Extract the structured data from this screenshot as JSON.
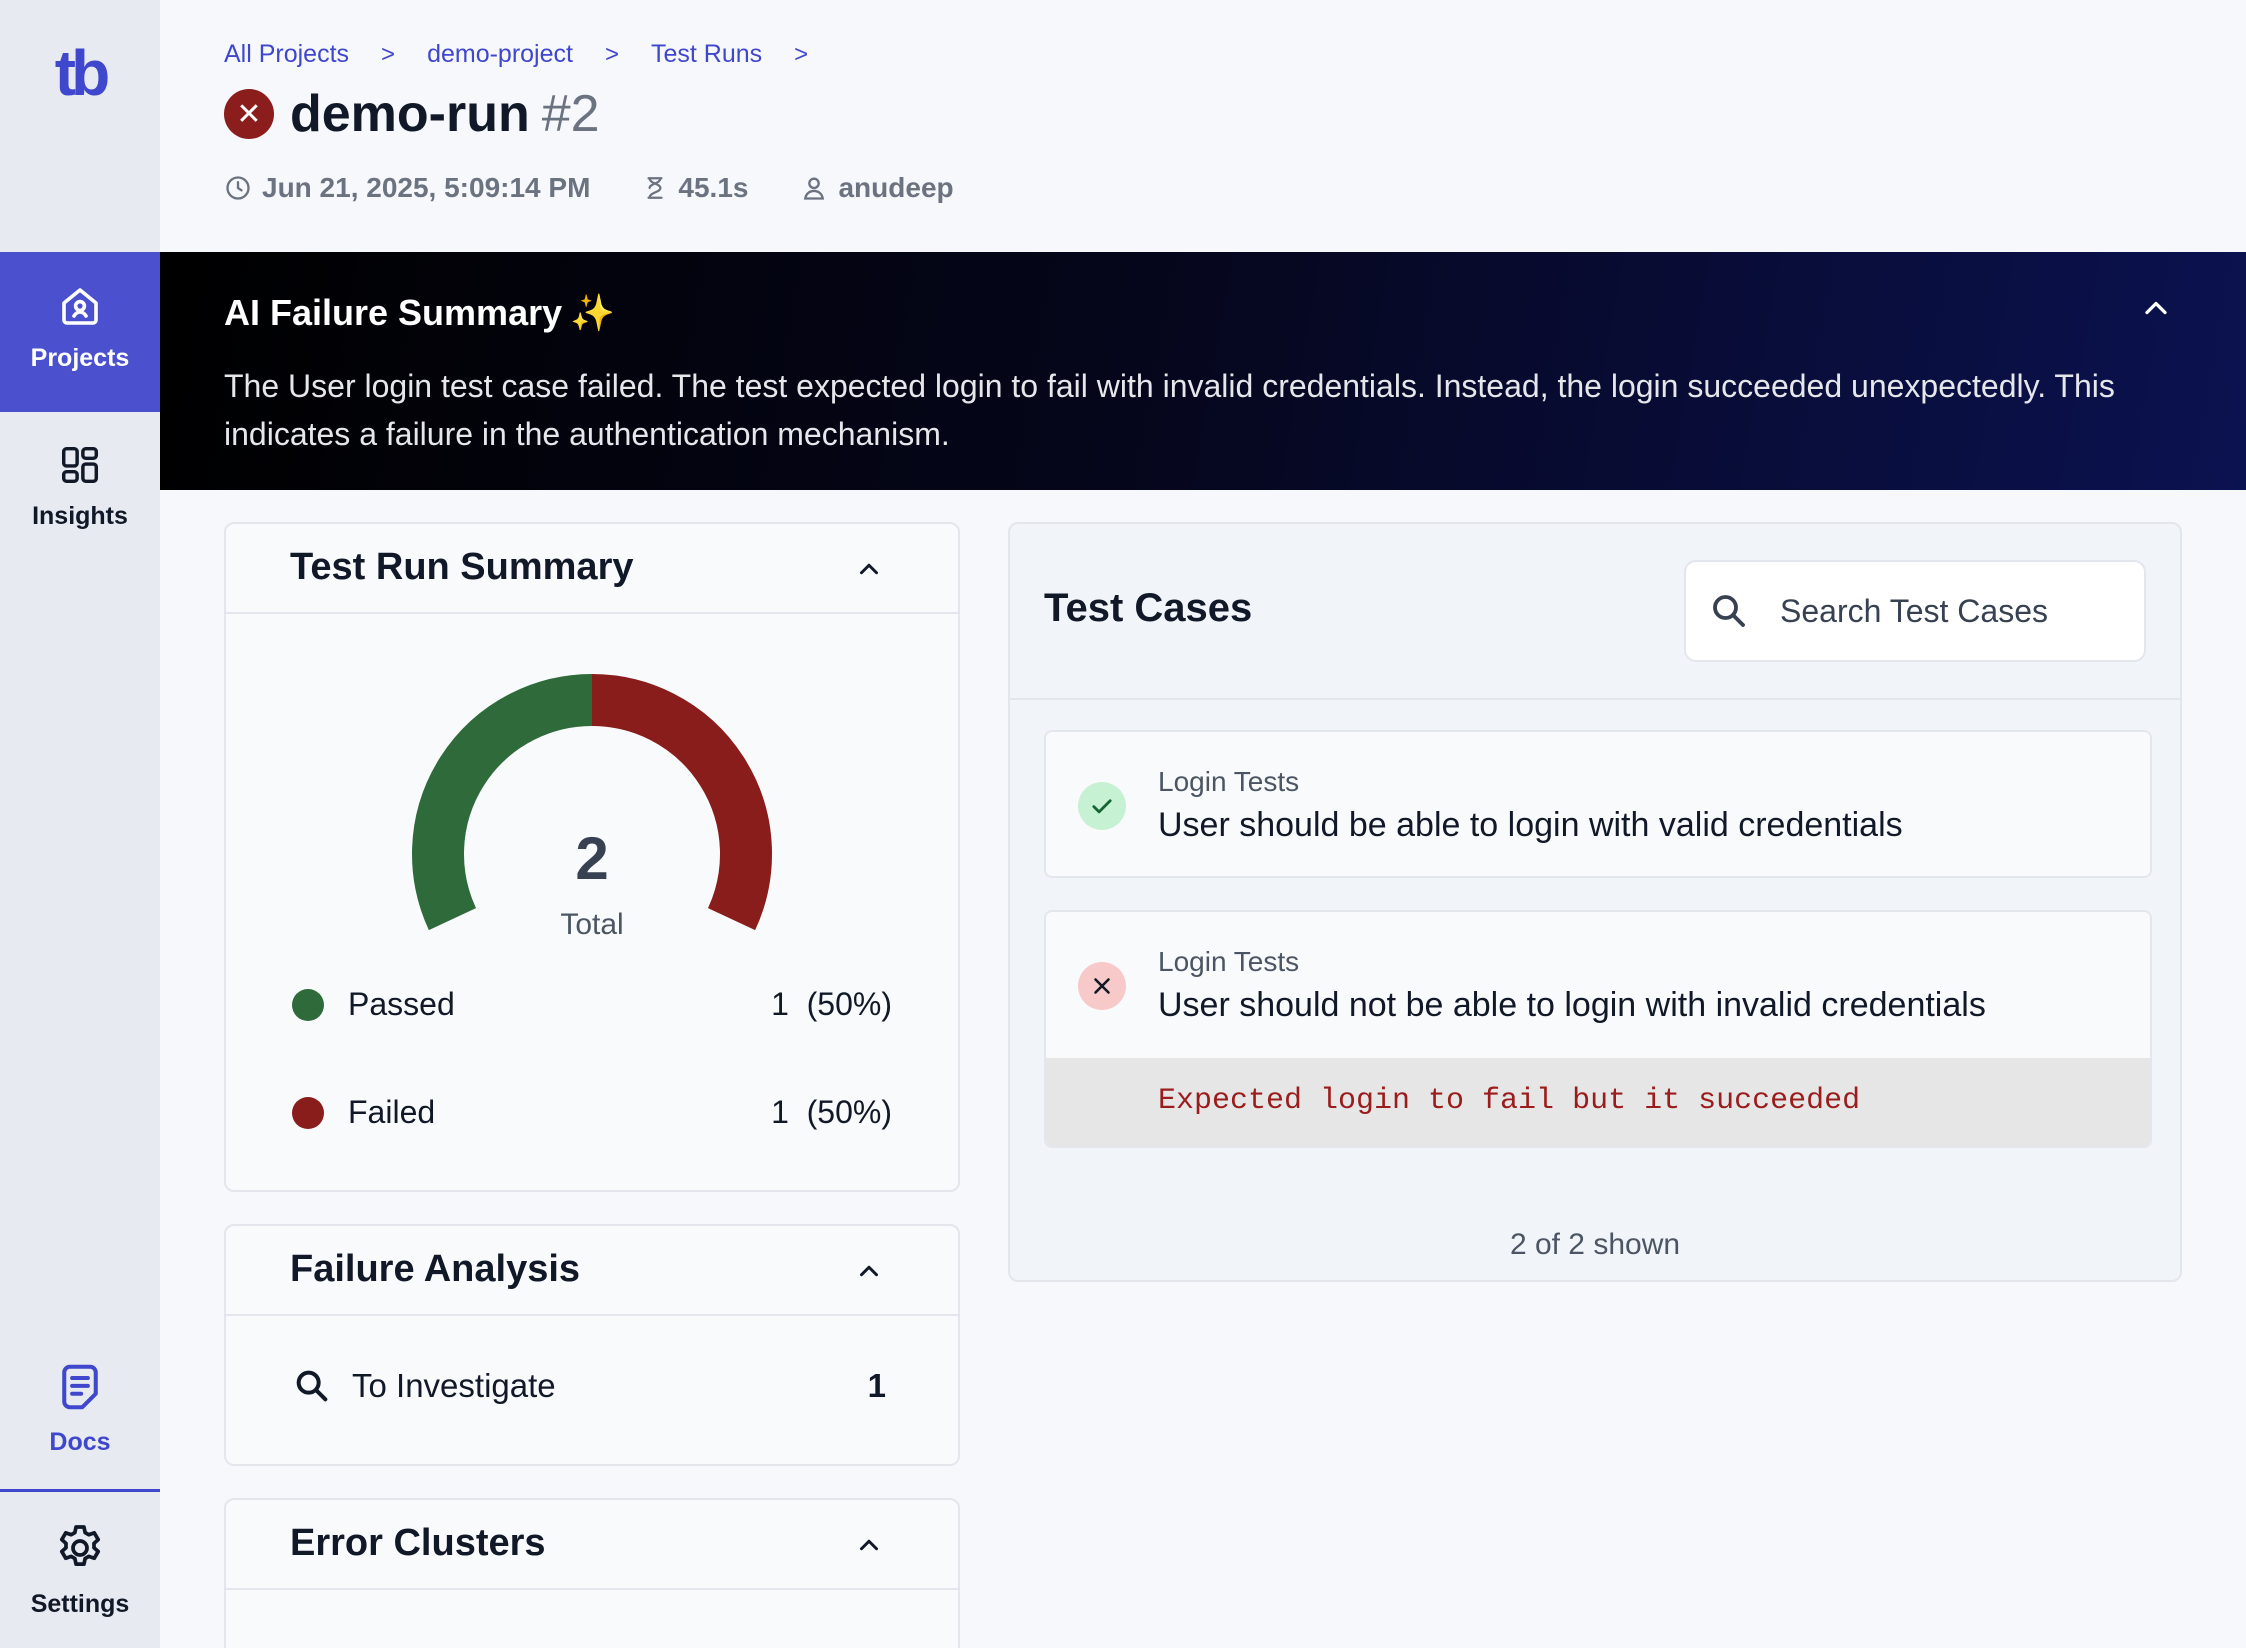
{
  "sidebar": {
    "logo": "tb",
    "items": [
      {
        "label": "Projects",
        "icon": "home-icon",
        "active": true
      },
      {
        "label": "Insights",
        "icon": "dashboard-icon"
      },
      {
        "label": "Docs",
        "icon": "document-icon"
      },
      {
        "label": "Settings",
        "icon": "gear-icon"
      }
    ]
  },
  "header": {
    "breadcrumb": [
      "All Projects",
      "demo-project",
      "Test Runs"
    ],
    "run_name": "demo-run",
    "run_number": "#2",
    "status": "failed",
    "timestamp": "Jun 21, 2025, 5:09:14 PM",
    "duration": "45.1s",
    "user": "anudeep"
  },
  "ai_summary": {
    "title": "AI Failure Summary",
    "sparkle": "✨",
    "text": "The User login test case failed. The test expected login to fail with invalid credentials. Instead, the login succeeded unexpectedly. This indicates a failure in the authentication mechanism."
  },
  "summary": {
    "title": "Test Run Summary",
    "total": "2",
    "total_label": "Total",
    "passed_label": "Passed",
    "passed_value": "1  (50%)",
    "failed_label": "Failed",
    "failed_value": "1  (50%)"
  },
  "chart_data": {
    "type": "pie",
    "title": "Test Run Summary",
    "categories": [
      "Passed",
      "Failed"
    ],
    "values": [
      1,
      1
    ],
    "colors": [
      "#2f6b3a",
      "#881d1b"
    ]
  },
  "failure_analysis": {
    "title": "Failure Analysis",
    "row_label": "To Investigate",
    "row_value": "1"
  },
  "error_clusters": {
    "title": "Error Clusters"
  },
  "test_cases": {
    "title": "Test Cases",
    "search_placeholder": "Search Test Cases",
    "items": [
      {
        "suite": "Login Tests",
        "name": "User should be able to login with valid credentials",
        "status": "passed"
      },
      {
        "suite": "Login Tests",
        "name": "User should not be able to login with invalid credentials",
        "status": "failed",
        "error": "Expected login to fail but it succeeded"
      }
    ],
    "count_text": "2 of 2 shown"
  },
  "colors": {
    "accent": "#3f47cc",
    "passed": "#2f6b3a",
    "failed": "#881d1b"
  }
}
